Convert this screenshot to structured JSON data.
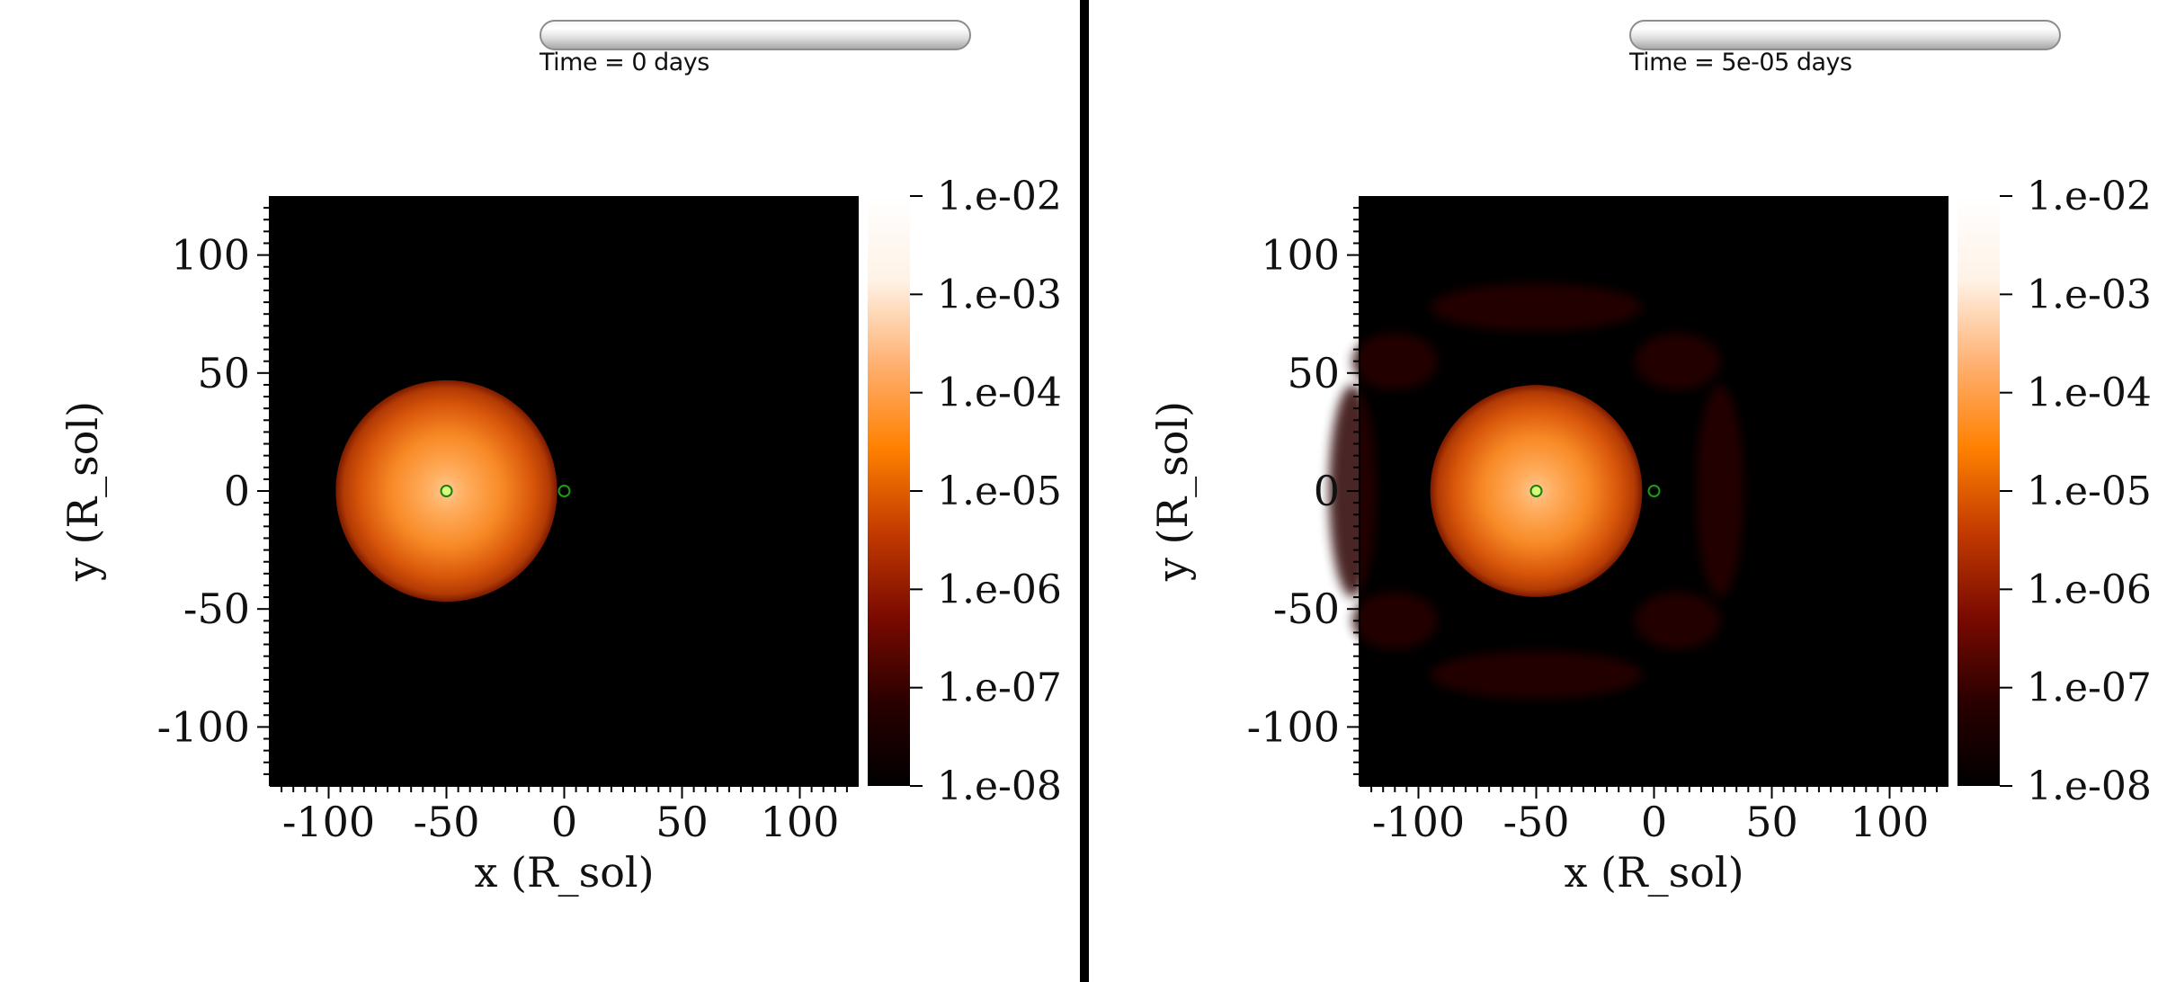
{
  "panels": [
    {
      "time_label": "Time = 0 days",
      "xlabel": "x (R_sol)",
      "ylabel": "y (R_sol)",
      "x_ticks": [
        "-100",
        "-50",
        "0",
        "50",
        "100"
      ],
      "y_ticks": [
        "100",
        "50",
        "0",
        "-50",
        "-100"
      ],
      "colorbar_ticks": [
        "1.e-02",
        "1.e-03",
        "1.e-04",
        "1.e-05",
        "1.e-06",
        "1.e-07",
        "1.e-08"
      ]
    },
    {
      "time_label": "Time = 5e-05 days",
      "xlabel": "x (R_sol)",
      "ylabel": "y (R_sol)",
      "x_ticks": [
        "-100",
        "-50",
        "0",
        "50",
        "100"
      ],
      "y_ticks": [
        "100",
        "50",
        "0",
        "-50",
        "-100"
      ],
      "colorbar_ticks": [
        "1.e-02",
        "1.e-03",
        "1.e-04",
        "1.e-05",
        "1.e-06",
        "1.e-07",
        "1.e-08"
      ]
    }
  ],
  "chart_data": [
    {
      "type": "heatmap",
      "title": "Time = 0 days",
      "xlabel": "x (R_sol)",
      "ylabel": "y (R_sol)",
      "xlim": [
        -125,
        125
      ],
      "ylim": [
        -125,
        125
      ],
      "colorbar": {
        "scale": "log",
        "range": [
          1e-08,
          0.01
        ],
        "ticks": [
          "1.e-02",
          "1.e-03",
          "1.e-04",
          "1.e-05",
          "1.e-06",
          "1.e-07",
          "1.e-08"
        ],
        "colormap": [
          "#000000",
          "#2a0000",
          "#7a0a00",
          "#c23a00",
          "#ff8000",
          "#ffb070",
          "#fff2e6",
          "#ffffff"
        ]
      },
      "star": {
        "center": [
          -50,
          0
        ],
        "radius": 47
      },
      "markers": [
        {
          "x": -50,
          "y": 0,
          "fill": "#d8ff7a",
          "stroke": "#1a7f10"
        },
        {
          "x": 0,
          "y": 0,
          "fill": "none",
          "stroke": "#1a9f10"
        }
      ],
      "ejecta_rings": false
    },
    {
      "type": "heatmap",
      "title": "Time = 5e-05 days",
      "xlabel": "x (R_sol)",
      "ylabel": "y (R_sol)",
      "xlim": [
        -125,
        125
      ],
      "ylim": [
        -125,
        125
      ],
      "colorbar": {
        "scale": "log",
        "range": [
          1e-08,
          0.01
        ],
        "ticks": [
          "1.e-02",
          "1.e-03",
          "1.e-04",
          "1.e-05",
          "1.e-06",
          "1.e-07",
          "1.e-08"
        ],
        "colormap": [
          "#000000",
          "#2a0000",
          "#7a0a00",
          "#c23a00",
          "#ff8000",
          "#ffb070",
          "#fff2e6",
          "#ffffff"
        ]
      },
      "star": {
        "center": [
          -50,
          0
        ],
        "radius": 45
      },
      "markers": [
        {
          "x": -50,
          "y": 0,
          "fill": "#d8ff7a",
          "stroke": "#1a7f10"
        },
        {
          "x": 0,
          "y": 0,
          "fill": "none",
          "stroke": "#1a9f10"
        }
      ],
      "ejecta_rings": true
    }
  ]
}
